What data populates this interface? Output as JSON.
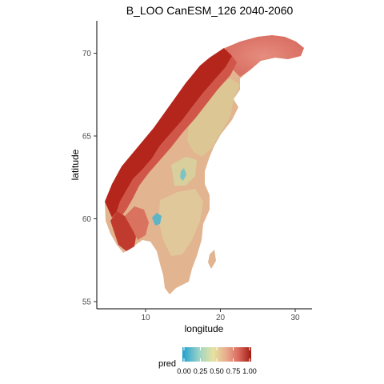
{
  "title": "B_LOO CanESM_126 2040-2060",
  "x_axis": {
    "label": "longitude",
    "ticks": [
      {
        "value": 10,
        "label": "10"
      },
      {
        "value": 20,
        "label": "20"
      },
      {
        "value": 30,
        "label": "30"
      }
    ]
  },
  "y_axis": {
    "label": "latitude",
    "ticks": [
      {
        "value": 55,
        "label": "55"
      },
      {
        "value": 60,
        "label": "60"
      },
      {
        "value": 65,
        "label": "65"
      },
      {
        "value": 70,
        "label": "70"
      }
    ]
  },
  "legend": {
    "title": "pred",
    "ticks": [
      {
        "value": 0.0,
        "label": "0.00"
      },
      {
        "value": 0.25,
        "label": "0.25"
      },
      {
        "value": 0.5,
        "label": "0.50"
      },
      {
        "value": 0.75,
        "label": "0.75"
      },
      {
        "value": 1.0,
        "label": "1.00"
      }
    ],
    "colors": [
      "#1f9fd0",
      "#e6e2a0",
      "#e8b98c",
      "#e07a6c",
      "#a11a12"
    ]
  },
  "map": {
    "region": "Scandinavia (Norway, Sweden)",
    "land_base_color": "#e3b694",
    "coast_high_color": "#b5231a",
    "low_value_color": "#d9d898"
  }
}
